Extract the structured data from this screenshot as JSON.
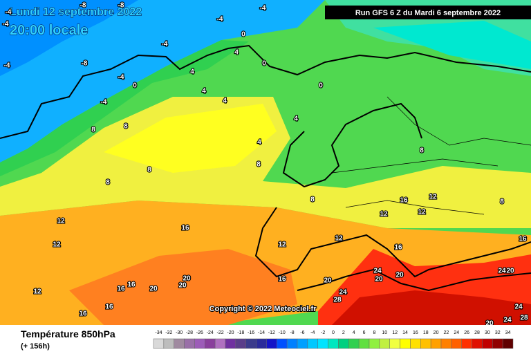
{
  "header": {
    "date": "Lundi 12 septembre 2022",
    "time": "20:00 locale",
    "run": "Run GFS 6 Z du Mardi 6 septembre 2022"
  },
  "copyright": "Copyright © 2022 Meteociel.fr",
  "footer": {
    "title": "Température 850hPa",
    "lead": "(+ 156h)"
  },
  "scale": {
    "values": [
      -34,
      -32,
      -30,
      -28,
      -26,
      -24,
      -22,
      -20,
      -18,
      -16,
      -14,
      -12,
      -10,
      -8,
      -6,
      -4,
      -2,
      0,
      2,
      4,
      6,
      8,
      10,
      12,
      14,
      16,
      18,
      20,
      22,
      24,
      26,
      28,
      30,
      32,
      34
    ],
    "colors": [
      "#d9d9d9",
      "#bdbdbd",
      "#a08aa0",
      "#9a6fa8",
      "#9d5cb8",
      "#8a3f9c",
      "#b070c0",
      "#7030a0",
      "#5a3d8a",
      "#3b3b8c",
      "#2b2b9a",
      "#1414c8",
      "#0050ff",
      "#0080ff",
      "#00a0ff",
      "#00c8ff",
      "#00e4ff",
      "#00e8c0",
      "#00d080",
      "#30d050",
      "#60e040",
      "#90f040",
      "#c0f040",
      "#f0ff40",
      "#ffff00",
      "#ffe000",
      "#ffc000",
      "#ffa000",
      "#ff8000",
      "#ff6000",
      "#ff3000",
      "#e01000",
      "#c00000",
      "#900000",
      "#600000"
    ]
  },
  "contour_labels": [
    -4,
    -4,
    -8,
    -8,
    -4,
    -4,
    -4,
    -8,
    -4,
    -4,
    0,
    -4,
    0,
    0,
    4,
    4,
    0,
    4,
    4,
    4,
    4,
    8,
    8,
    8,
    8,
    8,
    8,
    8,
    8,
    12,
    12,
    12,
    16,
    16,
    12,
    12,
    12,
    16,
    12,
    12,
    16,
    20,
    20,
    20,
    16,
    16,
    16,
    16,
    20,
    24,
    20,
    20,
    24,
    28,
    24,
    20,
    16,
    24,
    28,
    24,
    20
  ]
}
